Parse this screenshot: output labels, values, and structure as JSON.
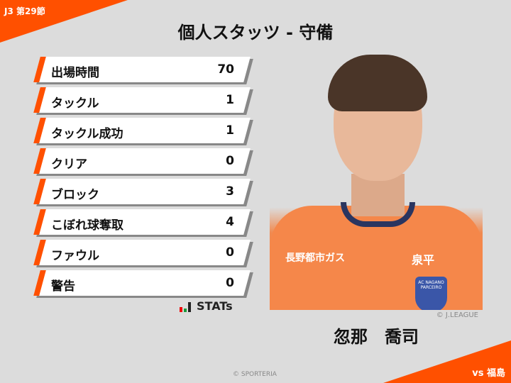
{
  "header": {
    "round": "J3 第29節",
    "title": "個人スタッツ - 守備"
  },
  "stats": [
    {
      "label": "出場時間",
      "value": "70"
    },
    {
      "label": "タックル",
      "value": "1"
    },
    {
      "label": "タックル成功",
      "value": "1"
    },
    {
      "label": "クリア",
      "value": "0"
    },
    {
      "label": "ブロック",
      "value": "3"
    },
    {
      "label": "こぼれ球奪取",
      "value": "4"
    },
    {
      "label": "ファウル",
      "value": "0"
    },
    {
      "label": "警告",
      "value": "0"
    }
  ],
  "logo": {
    "text": "STATs"
  },
  "player": {
    "name": "忽那　喬司",
    "photo_credit": "© J.LEAGUE",
    "sponsor1": "長野都市ガス",
    "sponsor2": "泉平",
    "crest": "AC NAGANO PARCEIRO"
  },
  "footer": {
    "opponent": "vs 福島",
    "credit": "© SPORTERIA"
  },
  "colors": {
    "accent": "#ff5000",
    "background": "#dcdcdc"
  }
}
